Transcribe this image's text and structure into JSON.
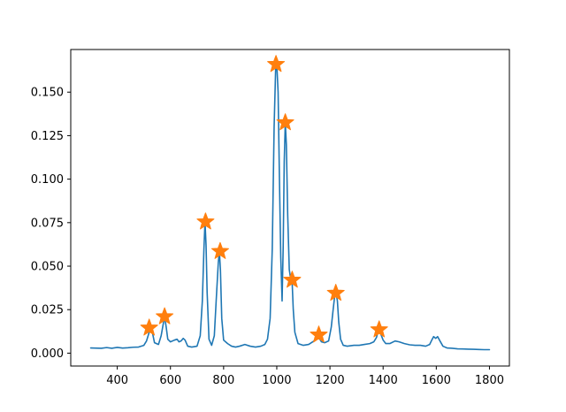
{
  "chart_data": {
    "type": "line",
    "xlim": [
      225,
      1875
    ],
    "ylim": [
      -0.0074,
      0.1745
    ],
    "x_ticks": [
      400,
      600,
      800,
      1000,
      1200,
      1400,
      1600,
      1800
    ],
    "x_tick_labels": [
      "400",
      "600",
      "800",
      "1000",
      "1200",
      "1400",
      "1600",
      "1800"
    ],
    "y_ticks": [
      0.0,
      0.025,
      0.05,
      0.075,
      0.1,
      0.125,
      0.15
    ],
    "y_tick_labels": [
      "0.000",
      "0.025",
      "0.050",
      "0.075",
      "0.100",
      "0.125",
      "0.150"
    ],
    "grid": false,
    "series": [
      {
        "style": "line",
        "color": "#1f77b4",
        "x": [
          300,
          340,
          360,
          380,
          400,
          420,
          440,
          460,
          480,
          500,
          510,
          518,
          525,
          532,
          540,
          555,
          565,
          572,
          578,
          584,
          590,
          600,
          615,
          625,
          632,
          640,
          648,
          655,
          665,
          680,
          700,
          712,
          720,
          726,
          730,
          734,
          738,
          745,
          755,
          765,
          772,
          780,
          784,
          788,
          793,
          800,
          815,
          830,
          845,
          860,
          880,
          900,
          920,
          940,
          955,
          965,
          975,
          983,
          990,
          996,
          1000,
          1005,
          1010,
          1015,
          1020,
          1024,
          1028,
          1032,
          1036,
          1041,
          1047,
          1053,
          1058,
          1062,
          1068,
          1080,
          1100,
          1120,
          1140,
          1152,
          1160,
          1168,
          1180,
          1195,
          1205,
          1212,
          1218,
          1223,
          1228,
          1233,
          1240,
          1250,
          1265,
          1290,
          1310,
          1330,
          1350,
          1365,
          1375,
          1383,
          1390,
          1400,
          1410,
          1425,
          1445,
          1460,
          1480,
          1500,
          1520,
          1540,
          1560,
          1575,
          1583,
          1590,
          1598,
          1605,
          1612,
          1625,
          1640,
          1660,
          1680,
          1700,
          1720,
          1740,
          1760,
          1780,
          1800
        ],
        "y": [
          0.003,
          0.0028,
          0.0032,
          0.0028,
          0.0033,
          0.0029,
          0.0031,
          0.0034,
          0.0035,
          0.0045,
          0.007,
          0.011,
          0.0145,
          0.012,
          0.006,
          0.005,
          0.01,
          0.016,
          0.021,
          0.015,
          0.008,
          0.0065,
          0.0075,
          0.008,
          0.0065,
          0.007,
          0.0085,
          0.0075,
          0.004,
          0.0035,
          0.004,
          0.01,
          0.03,
          0.06,
          0.0755,
          0.062,
          0.035,
          0.008,
          0.0045,
          0.01,
          0.03,
          0.052,
          0.0585,
          0.048,
          0.02,
          0.0075,
          0.0055,
          0.004,
          0.0035,
          0.004,
          0.005,
          0.004,
          0.0035,
          0.004,
          0.005,
          0.008,
          0.02,
          0.06,
          0.13,
          0.165,
          0.166,
          0.15,
          0.1,
          0.055,
          0.03,
          0.06,
          0.11,
          0.1325,
          0.12,
          0.08,
          0.048,
          0.042,
          0.04,
          0.025,
          0.012,
          0.0055,
          0.0045,
          0.005,
          0.007,
          0.0105,
          0.0085,
          0.0065,
          0.006,
          0.007,
          0.015,
          0.025,
          0.033,
          0.0345,
          0.03,
          0.018,
          0.008,
          0.0045,
          0.004,
          0.0045,
          0.0045,
          0.005,
          0.0055,
          0.0065,
          0.009,
          0.0135,
          0.0115,
          0.0075,
          0.0055,
          0.0055,
          0.007,
          0.0065,
          0.0055,
          0.0048,
          0.0045,
          0.0045,
          0.004,
          0.005,
          0.0075,
          0.0095,
          0.0085,
          0.0095,
          0.0075,
          0.004,
          0.003,
          0.0028,
          0.0025,
          0.0024,
          0.0023,
          0.0022,
          0.0021,
          0.002,
          0.002
        ]
      },
      {
        "style": "star-markers",
        "color": "#ff7f0e",
        "x": [
          520,
          578,
          732,
          787,
          997,
          1032,
          1058,
          1158,
          1222,
          1385
        ],
        "y": [
          0.0145,
          0.021,
          0.0755,
          0.0585,
          0.166,
          0.1325,
          0.042,
          0.0105,
          0.0345,
          0.0135
        ]
      }
    ]
  }
}
